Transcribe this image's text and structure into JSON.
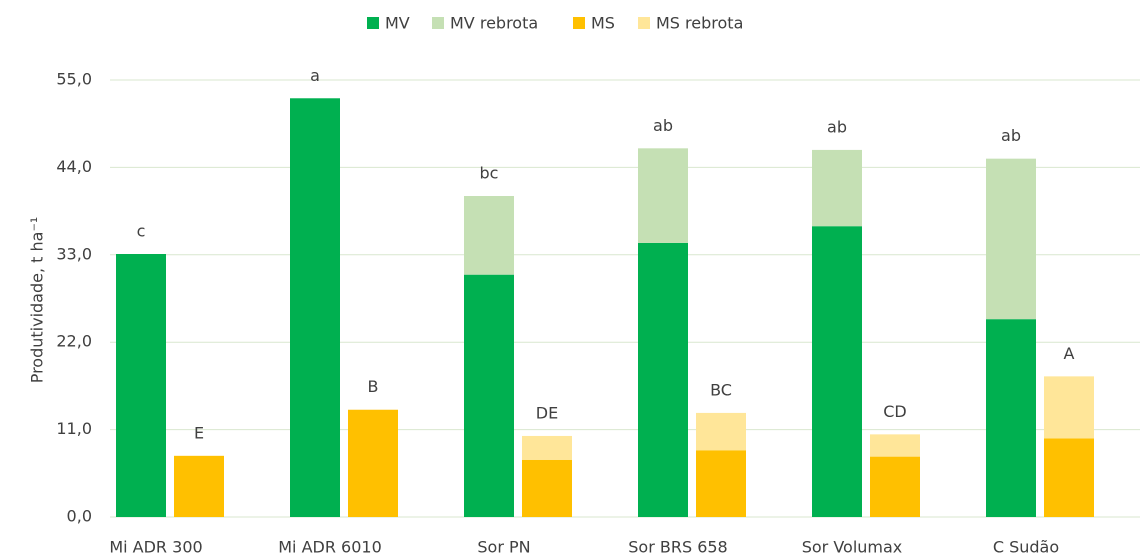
{
  "chart_data": {
    "type": "bar",
    "categories": [
      "Mi ADR 300",
      "Mi ADR 6010",
      "Sor PN",
      "Sor BRS 658",
      "Sor Volumax",
      "C Sudão"
    ],
    "series": [
      {
        "name": "MV",
        "color": "#00b050",
        "stack": 0,
        "values": [
          33.1,
          52.7,
          30.5,
          34.5,
          36.6,
          24.9
        ]
      },
      {
        "name": "MV rebrota",
        "color": "#c5e0b4",
        "stack": 0,
        "values": [
          0,
          0,
          9.9,
          11.9,
          9.6,
          20.2
        ]
      },
      {
        "name": "MS",
        "color": "#ffc000",
        "stack": 1,
        "values": [
          7.7,
          13.5,
          7.2,
          8.4,
          7.6,
          9.9
        ]
      },
      {
        "name": "MS rebrota",
        "color": "#ffe699",
        "stack": 1,
        "values": [
          0,
          0,
          3.0,
          4.7,
          2.8,
          7.8
        ]
      }
    ],
    "annotations": [
      [
        "c",
        "a",
        "bc",
        "ab",
        "ab",
        "ab"
      ],
      [
        "E",
        "B",
        "DE",
        "BC",
        "CD",
        "A"
      ]
    ],
    "ylabel": "Produtividade, t ha⁻¹",
    "ylim": [
      0,
      55
    ],
    "yticks": [
      {
        "value": 0,
        "label": "0,0"
      },
      {
        "value": 11,
        "label": "11,0"
      },
      {
        "value": 22,
        "label": "22,0"
      },
      {
        "value": 33,
        "label": "33,0"
      },
      {
        "value": 44,
        "label": "44,0"
      },
      {
        "value": 55,
        "label": "55,0"
      }
    ],
    "grid": true,
    "legend": "top"
  }
}
